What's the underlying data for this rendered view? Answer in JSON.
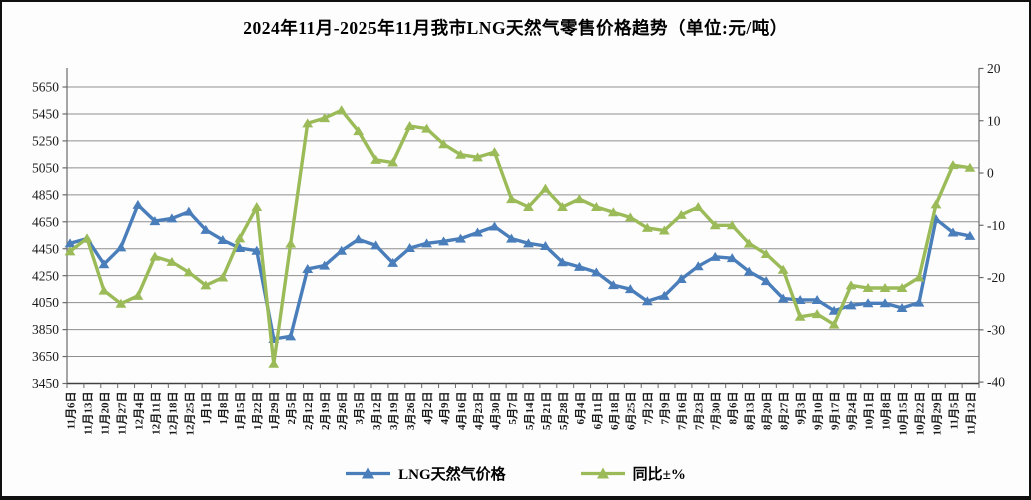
{
  "chart_data": {
    "type": "line",
    "title": "2024年11月-2025年11月我市LNG天然气零售价格趋势（单位:元/吨）",
    "categories": [
      "11月6日",
      "11月13日",
      "11月20日",
      "11月27日",
      "12月4日",
      "12月11日",
      "12月18日",
      "12月25日",
      "1月1日",
      "1月8日",
      "1月15日",
      "1月22日",
      "1月29日",
      "2月5日",
      "2月12日",
      "2月19日",
      "2月26日",
      "3月5日",
      "3月12日",
      "3月19日",
      "3月26日",
      "4月2日",
      "4月9日",
      "4月16日",
      "4月23日",
      "4月30日",
      "5月7日",
      "5月14日",
      "5月21日",
      "5月28日",
      "6月4日",
      "6月11日",
      "6月18日",
      "6月25日",
      "7月2日",
      "7月9日",
      "7月16日",
      "7月23日",
      "7月30日",
      "8月6日",
      "8月13日",
      "8月20日",
      "8月27日",
      "9月3日",
      "9月10日",
      "9月17日",
      "9月24日",
      "10月1日",
      "10月8日",
      "10月15日",
      "10月22日",
      "10月29日",
      "11月5日",
      "11月12日"
    ],
    "series": [
      {
        "name": "LNG天然气价格",
        "axis": "left",
        "color": "#4a7ebb",
        "marker": "triangle",
        "values": [
          4490,
          4525,
          4335,
          4460,
          4775,
          4655,
          4675,
          4725,
          4590,
          4515,
          4455,
          4435,
          3780,
          3800,
          4300,
          4325,
          4435,
          4520,
          4475,
          4345,
          4455,
          4490,
          4505,
          4525,
          4570,
          4615,
          4525,
          4490,
          4470,
          4350,
          4315,
          4275,
          4180,
          4150,
          4060,
          4100,
          4225,
          4320,
          4390,
          4380,
          4280,
          4210,
          4080,
          4070,
          4070,
          3990,
          4030,
          4045,
          4045,
          4010,
          4050,
          4670,
          4570,
          4545
        ]
      },
      {
        "name": "同比±%",
        "axis": "right",
        "color": "#9bbb59",
        "marker": "triangle",
        "values": [
          -15,
          -12.5,
          -22.5,
          -25,
          -23.5,
          -16,
          -17,
          -19,
          -21.5,
          -20,
          -12.5,
          -6.5,
          -36.5,
          -13.5,
          9.5,
          10.5,
          12,
          8,
          2.5,
          2,
          9,
          8.5,
          5.5,
          3.5,
          3,
          4,
          -5,
          -6.5,
          -3,
          -6.5,
          -5,
          -6.5,
          -7.5,
          -8.5,
          -10.5,
          -11,
          -8,
          -6.5,
          -10,
          -10,
          -13.5,
          -15.5,
          -18.5,
          -27.5,
          -27,
          -29,
          -21.5,
          -22,
          -22,
          -22,
          -20,
          -6,
          1.5,
          1
        ]
      }
    ],
    "left_axis": {
      "min": 3450,
      "max": 5650,
      "step": 200,
      "ticks": [
        5650,
        5450,
        5250,
        5050,
        4850,
        4650,
        4450,
        4250,
        4050,
        3850,
        3650,
        3450
      ]
    },
    "right_axis": {
      "min": -40,
      "max": 20,
      "step": 10,
      "ticks": [
        20,
        10,
        0,
        -10,
        -20,
        -30,
        -40
      ]
    },
    "grid": true,
    "legend_position": "bottom"
  },
  "colors": {
    "grid": "#8e8e8e",
    "axis": "#6b6b6b",
    "bottom_axis": "#404040",
    "text": "#1a1a1a",
    "background": "#fdfdfd",
    "border": "#101010"
  }
}
